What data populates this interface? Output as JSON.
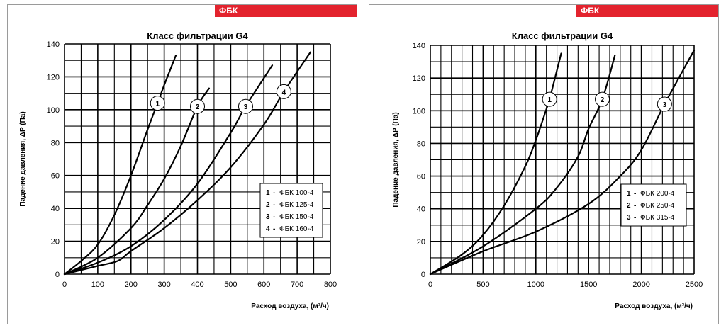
{
  "header_tag": "ФБК",
  "chart_data": [
    {
      "type": "line",
      "title": "Класс фильтрации G4",
      "xlabel": "Расход воздуха, (м³/ч)",
      "ylabel": "Падение давления, ΔP (Па)",
      "xlim": [
        0,
        800
      ],
      "ylim": [
        0,
        140
      ],
      "xticks": [
        0,
        100,
        200,
        300,
        400,
        500,
        600,
        700,
        800
      ],
      "yticks": [
        0,
        20,
        40,
        60,
        80,
        100,
        120,
        140
      ],
      "grid": true,
      "legend_position": "right-middle",
      "series": [
        {
          "name": "ФБК 100-4",
          "marker": "1",
          "marker_at": [
            280,
            104
          ],
          "x": [
            0,
            50,
            100,
            150,
            200,
            250,
            280,
            300,
            335
          ],
          "y": [
            0,
            8,
            18,
            36,
            60,
            88,
            104,
            115,
            133
          ]
        },
        {
          "name": "ФБК 125-4",
          "marker": "2",
          "marker_at": [
            400,
            102
          ],
          "x": [
            0,
            100,
            200,
            250,
            300,
            350,
            400,
            435
          ],
          "y": [
            0,
            10,
            28,
            42,
            58,
            78,
            102,
            113
          ]
        },
        {
          "name": "ФБК 150-4",
          "marker": "3",
          "marker_at": [
            545,
            102
          ],
          "x": [
            0,
            100,
            200,
            300,
            400,
            500,
            545,
            625
          ],
          "y": [
            0,
            7,
            17,
            33,
            55,
            86,
            102,
            127
          ]
        },
        {
          "name": "ФБК 160-4",
          "marker": "4",
          "marker_at": [
            660,
            111
          ],
          "x": [
            0,
            100,
            160,
            200,
            300,
            400,
            500,
            600,
            660,
            740
          ],
          "y": [
            0,
            5,
            8,
            14,
            28,
            45,
            65,
            91,
            111,
            135
          ]
        }
      ]
    },
    {
      "type": "line",
      "title": "Класс фильтрации G4",
      "xlabel": "Расход воздуха, (м³/ч)",
      "ylabel": "Падение давления, ΔP (Па)",
      "xlim": [
        0,
        2500
      ],
      "ylim": [
        0,
        140
      ],
      "xticks": [
        0,
        500,
        1000,
        1500,
        2000,
        2500
      ],
      "yticks": [
        0,
        20,
        40,
        60,
        80,
        100,
        120,
        140
      ],
      "grid": true,
      "legend_position": "right-middle",
      "series": [
        {
          "name": "ФБК 200-4",
          "marker": "1",
          "marker_at": [
            1130,
            107
          ],
          "x": [
            0,
            300,
            500,
            700,
            900,
            1000,
            1100,
            1130,
            1240
          ],
          "y": [
            0,
            12,
            24,
            42,
            66,
            82,
            101,
            107,
            135
          ]
        },
        {
          "name": "ФБК 250-4",
          "marker": "2",
          "marker_at": [
            1630,
            107
          ],
          "x": [
            0,
            500,
            1000,
            1200,
            1400,
            1500,
            1630,
            1750
          ],
          "y": [
            0,
            17,
            40,
            53,
            72,
            89,
            107,
            134
          ]
        },
        {
          "name": "ФБК 315-4",
          "marker": "3",
          "marker_at": [
            2220,
            104
          ],
          "x": [
            0,
            500,
            1000,
            1500,
            1800,
            2000,
            2220,
            2500
          ],
          "y": [
            0,
            14,
            26,
            43,
            60,
            76,
            104,
            137
          ]
        }
      ]
    }
  ]
}
